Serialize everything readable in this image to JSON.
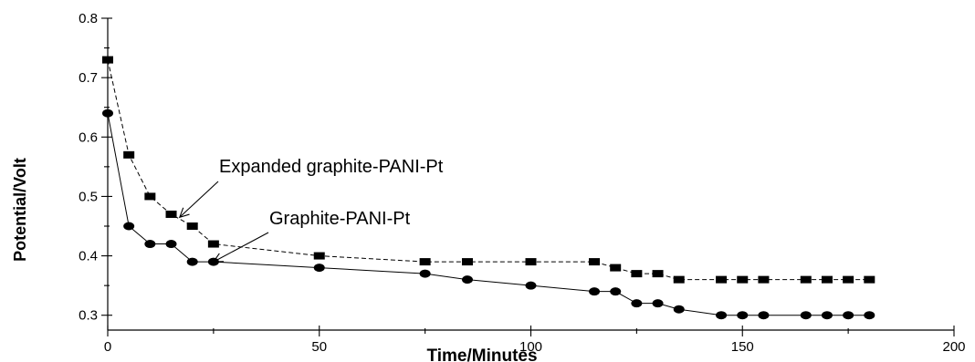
{
  "chart_data": {
    "type": "line",
    "xlabel": "Time/Minutes",
    "ylabel": "Potential/Volt",
    "xlim": [
      0,
      200
    ],
    "ylim": [
      0.3,
      0.8
    ],
    "x_ticks": [
      0,
      50,
      100,
      150,
      200
    ],
    "y_ticks": [
      0.3,
      0.4,
      0.5,
      0.6,
      0.7,
      0.8
    ],
    "grid": false,
    "series": [
      {
        "name": "Expanded graphite-PANI-Pt",
        "marker": "square",
        "x": [
          0,
          5,
          10,
          15,
          20,
          25,
          50,
          75,
          85,
          100,
          115,
          120,
          125,
          130,
          135,
          145,
          150,
          155,
          165,
          170,
          175,
          180
        ],
        "y": [
          0.73,
          0.57,
          0.5,
          0.47,
          0.45,
          0.42,
          0.4,
          0.39,
          0.39,
          0.39,
          0.39,
          0.38,
          0.37,
          0.37,
          0.36,
          0.36,
          0.36,
          0.36,
          0.36,
          0.36,
          0.36,
          0.36
        ]
      },
      {
        "name": "Graphite-PANI-Pt",
        "marker": "circle",
        "x": [
          0,
          5,
          10,
          15,
          20,
          25,
          50,
          75,
          85,
          100,
          115,
          120,
          125,
          130,
          135,
          145,
          150,
          155,
          165,
          170,
          175,
          180
        ],
        "y": [
          0.64,
          0.45,
          0.42,
          0.42,
          0.39,
          0.39,
          0.38,
          0.37,
          0.36,
          0.35,
          0.34,
          0.34,
          0.32,
          0.32,
          0.31,
          0.3,
          0.3,
          0.3,
          0.3,
          0.3,
          0.3,
          0.3
        ]
      }
    ],
    "annotations": [
      {
        "text": "Expanded graphite-PANI-Pt",
        "arrow_to": [
          17,
          0.465
        ]
      },
      {
        "text": "Graphite-PANI-Pt",
        "arrow_to": [
          25,
          0.39
        ]
      }
    ]
  }
}
